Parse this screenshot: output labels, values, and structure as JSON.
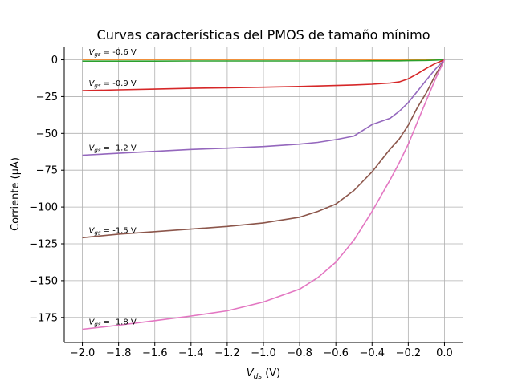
{
  "chart_data": {
    "type": "line",
    "title": "Curvas características del PMOS de tamaño mínimo",
    "xlabel": {
      "main": "V",
      "sub": "ds",
      "unit": " (V)"
    },
    "ylabel": "Corriente (μA)",
    "xlim": [
      -2.1,
      0.1
    ],
    "ylim": [
      -192,
      9
    ],
    "grid": true,
    "x_ticks": [
      -2.0,
      -1.8,
      -1.6,
      -1.4,
      -1.2,
      -1.0,
      -0.8,
      -0.6,
      -0.4,
      -0.2,
      0.0
    ],
    "x_tick_labels": [
      "−2.0",
      "−1.8",
      "−1.6",
      "−1.4",
      "−1.2",
      "−1.0",
      "−0.8",
      "−0.6",
      "−0.4",
      "−0.2",
      "0.0"
    ],
    "y_ticks": [
      0,
      -25,
      -50,
      -75,
      -100,
      -125,
      -150,
      -175
    ],
    "y_tick_labels": [
      "0",
      "−25",
      "−50",
      "−75",
      "−100",
      "−125",
      "−150",
      "−175"
    ],
    "x": [
      -2.0,
      -1.8,
      -1.6,
      -1.4,
      -1.2,
      -1.0,
      -0.8,
      -0.7,
      -0.6,
      -0.5,
      -0.4,
      -0.3,
      -0.25,
      -0.2,
      -0.15,
      -0.1,
      -0.05,
      0.0
    ],
    "series": [
      {
        "label": "V",
        "label_sub": "gs",
        "label_value": " = -0.6 V",
        "color": "#ff7f0e",
        "values": [
          0.3,
          0.3,
          0.3,
          0.3,
          0.3,
          0.3,
          0.3,
          0.3,
          0.3,
          0.3,
          0.3,
          0.3,
          0.3,
          0.3,
          0.3,
          0.3,
          0.3,
          0.0
        ]
      },
      {
        "label": "",
        "label_sub": "",
        "label_value": "",
        "color": "#2ca02c",
        "values": [
          -0.9,
          -0.9,
          -0.9,
          -0.8,
          -0.8,
          -0.8,
          -0.8,
          -0.8,
          -0.8,
          -0.8,
          -0.7,
          -0.7,
          -0.7,
          -0.6,
          -0.5,
          -0.4,
          -0.2,
          0.0
        ]
      },
      {
        "label": "V",
        "label_sub": "gs",
        "label_value": " = -0.9 V",
        "color": "#d62728",
        "values": [
          -21.0,
          -20.4,
          -19.9,
          -19.4,
          -19.0,
          -18.6,
          -18.1,
          -17.8,
          -17.5,
          -17.1,
          -16.6,
          -15.8,
          -15.0,
          -12.9,
          -9.6,
          -5.8,
          -2.5,
          0.0
        ]
      },
      {
        "label": "V",
        "label_sub": "gs",
        "label_value": " = -1.2 V",
        "color": "#9467bd",
        "values": [
          -64.8,
          -63.5,
          -62.2,
          -60.9,
          -60.0,
          -58.9,
          -57.3,
          -56.1,
          -54.2,
          -51.8,
          -44.0,
          -39.7,
          -35.0,
          -29.0,
          -21.5,
          -13.7,
          -6.3,
          0.0
        ]
      },
      {
        "label": "V",
        "label_sub": "gs",
        "label_value": " = -1.5 V",
        "color": "#8c564b",
        "values": [
          -120.8,
          -118.4,
          -116.7,
          -115.0,
          -113.2,
          -110.8,
          -106.9,
          -103.0,
          -98.0,
          -88.8,
          -76.1,
          -60.6,
          -53.8,
          -44.4,
          -32.6,
          -22.4,
          -10.3,
          0.0
        ]
      },
      {
        "label": "V",
        "label_sub": "gs",
        "label_value": " = -1.8 V",
        "color": "#e377c2",
        "values": [
          -183.0,
          -180.3,
          -177.2,
          -174.0,
          -170.5,
          -164.5,
          -155.7,
          -148.0,
          -137.5,
          -122.5,
          -103.0,
          -81.5,
          -70.0,
          -57.3,
          -42.5,
          -27.6,
          -13.0,
          0.0
        ]
      }
    ]
  }
}
